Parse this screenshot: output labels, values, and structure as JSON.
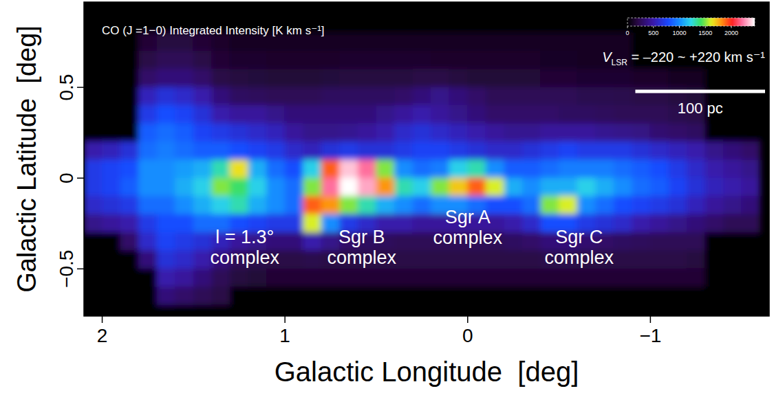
{
  "chart_data": {
    "type": "heatmap",
    "title": "CO (J =1−0) Integrated Intensity [K km s⁻¹]",
    "x_label": "Galactic Longitude  [deg]",
    "y_label": "Galactic Latitude  [deg]",
    "xlim": [
      2.1,
      -1.65
    ],
    "ylim": [
      -0.76,
      0.97
    ],
    "xticks": [
      2,
      1,
      0,
      {
        "value": -1,
        "label": "−1"
      }
    ],
    "yticks": [
      {
        "value": -0.5,
        "label": "−0.5"
      },
      0,
      0.5
    ],
    "x": [
      2.05,
      1.95,
      1.85,
      1.75,
      1.65,
      1.55,
      1.45,
      1.35,
      1.25,
      1.15,
      1.05,
      0.95,
      0.85,
      0.75,
      0.65,
      0.55,
      0.45,
      0.35,
      0.25,
      0.15,
      0.05,
      -0.05,
      -0.15,
      -0.25,
      -0.35,
      -0.45,
      -0.55,
      -0.65,
      -0.75,
      -0.85,
      -0.95,
      -1.05,
      -1.15,
      -1.25,
      -1.35,
      -1.45,
      -1.55
    ],
    "y": [
      0.85,
      0.75,
      0.65,
      0.55,
      0.45,
      0.35,
      0.25,
      0.15,
      0.05,
      -0.05,
      -0.15,
      -0.25,
      -0.35,
      -0.45,
      -0.55,
      -0.65,
      -0.75
    ],
    "cells": [
      [
        0,
        0,
        0,
        0,
        0,
        0,
        0,
        0,
        0,
        0,
        0,
        0,
        0,
        0,
        0,
        0,
        0,
        0,
        0,
        0,
        0,
        0,
        0,
        0,
        0,
        0,
        0,
        0,
        0,
        0,
        0,
        0,
        0,
        0,
        0,
        0,
        0
      ],
      [
        0,
        0,
        0,
        150,
        180,
        180,
        150,
        120,
        100,
        100,
        100,
        100,
        100,
        100,
        100,
        100,
        100,
        100,
        100,
        100,
        100,
        100,
        100,
        100,
        100,
        100,
        100,
        100,
        100,
        100,
        0,
        0,
        0,
        0,
        0,
        0,
        0
      ],
      [
        0,
        0,
        0,
        200,
        250,
        250,
        200,
        150,
        130,
        130,
        120,
        120,
        120,
        120,
        130,
        130,
        130,
        130,
        130,
        120,
        120,
        120,
        120,
        120,
        120,
        110,
        110,
        100,
        100,
        100,
        0,
        0,
        0,
        0,
        0,
        0,
        0
      ],
      [
        0,
        0,
        0,
        300,
        350,
        350,
        300,
        200,
        180,
        170,
        160,
        160,
        160,
        170,
        180,
        180,
        180,
        180,
        200,
        200,
        180,
        160,
        160,
        160,
        160,
        150,
        150,
        140,
        140,
        140,
        120,
        120,
        100,
        100,
        0,
        0,
        0
      ],
      [
        0,
        0,
        0,
        550,
        650,
        600,
        500,
        350,
        280,
        260,
        250,
        250,
        250,
        270,
        280,
        280,
        280,
        300,
        350,
        400,
        350,
        300,
        250,
        250,
        250,
        250,
        250,
        230,
        230,
        220,
        200,
        200,
        180,
        160,
        0,
        0,
        0
      ],
      [
        0,
        0,
        0,
        700,
        800,
        750,
        650,
        500,
        450,
        450,
        400,
        350,
        350,
        350,
        350,
        350,
        400,
        450,
        500,
        450,
        400,
        350,
        300,
        300,
        300,
        300,
        280,
        280,
        260,
        250,
        250,
        250,
        220,
        200,
        0,
        0,
        0
      ],
      [
        0,
        0,
        0,
        850,
        900,
        850,
        750,
        700,
        650,
        600,
        550,
        450,
        400,
        400,
        420,
        450,
        500,
        600,
        650,
        600,
        550,
        500,
        450,
        420,
        420,
        450,
        450,
        450,
        420,
        400,
        380,
        320,
        300,
        280,
        0,
        0,
        0
      ],
      [
        500,
        550,
        650,
        900,
        950,
        900,
        850,
        850,
        800,
        750,
        700,
        600,
        550,
        650,
        700,
        650,
        650,
        700,
        750,
        750,
        700,
        650,
        600,
        600,
        650,
        700,
        750,
        700,
        700,
        700,
        650,
        600,
        550,
        500,
        400,
        350,
        300
      ],
      [
        700,
        750,
        800,
        1000,
        1000,
        1050,
        1100,
        1300,
        1650,
        1100,
        900,
        800,
        1200,
        1900,
        2350,
        2200,
        1500,
        1000,
        900,
        950,
        1200,
        1300,
        1000,
        850,
        850,
        900,
        950,
        950,
        950,
        900,
        850,
        800,
        700,
        600,
        500,
        450,
        400
      ],
      [
        700,
        750,
        850,
        1000,
        1000,
        1100,
        1200,
        1500,
        1400,
        1200,
        1000,
        900,
        1500,
        2200,
        2450,
        2300,
        1800,
        1300,
        1200,
        1500,
        1700,
        1900,
        1600,
        1100,
        1000,
        1100,
        1100,
        1200,
        1100,
        1000,
        900,
        850,
        750,
        650,
        550,
        500,
        450
      ],
      [
        600,
        650,
        700,
        900,
        900,
        1000,
        1100,
        1200,
        1300,
        1100,
        1000,
        900,
        1900,
        1800,
        1500,
        1300,
        1100,
        1000,
        900,
        1000,
        1000,
        900,
        800,
        800,
        900,
        1500,
        1600,
        1000,
        900,
        800,
        750,
        700,
        650,
        550,
        450,
        400,
        350
      ],
      [
        400,
        450,
        500,
        700,
        800,
        800,
        900,
        900,
        800,
        750,
        700,
        700,
        1600,
        1000,
        700,
        600,
        500,
        500,
        450,
        450,
        450,
        450,
        450,
        500,
        600,
        800,
        800,
        700,
        650,
        600,
        500,
        450,
        400,
        350,
        300,
        250,
        250
      ],
      [
        0,
        0,
        300,
        600,
        750,
        700,
        650,
        550,
        450,
        400,
        350,
        350,
        500,
        400,
        300,
        280,
        260,
        250,
        250,
        250,
        250,
        250,
        250,
        280,
        300,
        350,
        350,
        320,
        300,
        280,
        260,
        250,
        250,
        250,
        0,
        0,
        0
      ],
      [
        0,
        0,
        0,
        350,
        650,
        600,
        500,
        350,
        250,
        220,
        200,
        200,
        220,
        200,
        200,
        200,
        200,
        200,
        200,
        200,
        200,
        200,
        200,
        200,
        200,
        220,
        220,
        200,
        200,
        200,
        200,
        200,
        200,
        180,
        0,
        0,
        0
      ],
      [
        0,
        0,
        0,
        0,
        500,
        450,
        350,
        250,
        180,
        160,
        150,
        150,
        150,
        150,
        150,
        150,
        150,
        150,
        150,
        150,
        150,
        150,
        150,
        150,
        150,
        150,
        150,
        150,
        150,
        150,
        150,
        150,
        150,
        150,
        0,
        0,
        0
      ],
      [
        0,
        0,
        0,
        0,
        350,
        300,
        250,
        200,
        0,
        0,
        0,
        0,
        0,
        0,
        0,
        0,
        0,
        0,
        0,
        0,
        0,
        0,
        0,
        0,
        0,
        0,
        0,
        0,
        0,
        0,
        0,
        0,
        0,
        0,
        0,
        0,
        0
      ],
      [
        0,
        0,
        0,
        0,
        0,
        0,
        0,
        0,
        0,
        0,
        0,
        0,
        0,
        0,
        0,
        0,
        0,
        0,
        0,
        0,
        0,
        0,
        0,
        0,
        0,
        0,
        0,
        0,
        0,
        0,
        0,
        0,
        0,
        0,
        0,
        0,
        0
      ]
    ],
    "colorbar": {
      "range": [
        0,
        2450
      ],
      "ticks": [
        0,
        500,
        1000,
        1500,
        2000
      ]
    },
    "velocity_range": {
      "symbol": "V",
      "subscript": "LSR",
      "text": " = –220 ~ +220 km s⁻¹"
    },
    "scale_bar": {
      "label": "100 pc",
      "length": 0.71
    },
    "annotations": [
      {
        "lines": [
          "l = 1.3°",
          "complex"
        ],
        "x": 1.22,
        "y": -0.32
      },
      {
        "lines": [
          "Sgr B",
          "complex"
        ],
        "x": 0.58,
        "y": -0.32
      },
      {
        "lines": [
          "Sgr A",
          "complex"
        ],
        "x": 0.0,
        "y": -0.21
      },
      {
        "lines": [
          "Sgr C",
          "complex"
        ],
        "x": -0.61,
        "y": -0.32
      }
    ]
  }
}
